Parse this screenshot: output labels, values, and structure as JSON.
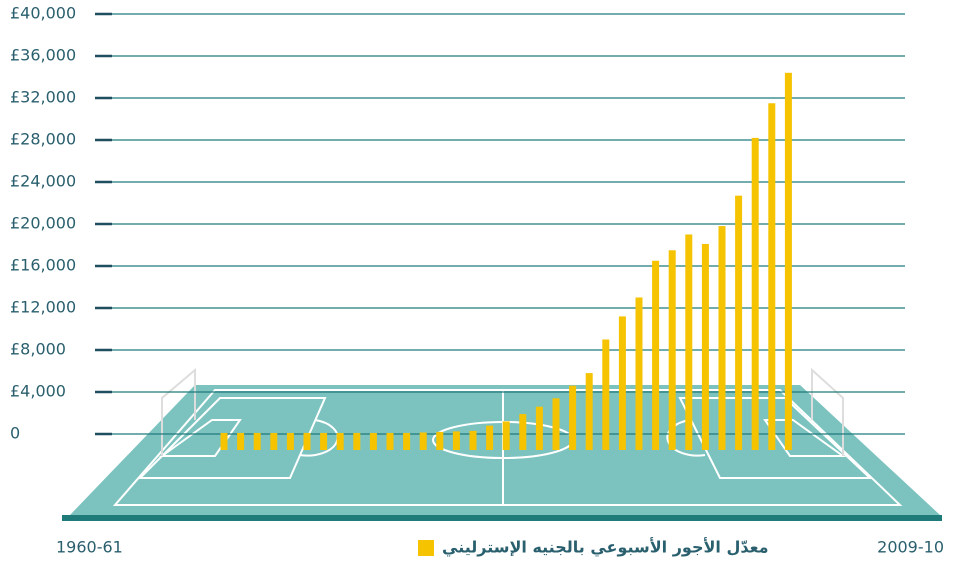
{
  "chart_data": {
    "type": "bar",
    "categories": [
      "1960-61",
      null,
      null,
      null,
      null,
      null,
      null,
      null,
      null,
      null,
      null,
      null,
      null,
      null,
      null,
      null,
      null,
      null,
      null,
      null,
      null,
      null,
      null,
      null,
      null,
      null,
      null,
      null,
      null,
      null,
      null,
      null,
      null,
      null,
      "2009-10"
    ],
    "series": [
      {
        "name": "معدّل الأجور الأسبوعي بالجنيه الإسترليني",
        "color": "#f6c300",
        "values": [
          100,
          100,
          100,
          100,
          100,
          100,
          100,
          100,
          100,
          100,
          100,
          100,
          150,
          200,
          250,
          300,
          800,
          1200,
          1900,
          2600,
          3400,
          4600,
          5800,
          9000,
          11200,
          13000,
          16500,
          17500,
          19000,
          18100,
          19800,
          22700,
          28200,
          31500,
          34400
        ]
      }
    ],
    "ylim": [
      0,
      40000
    ],
    "yticks": [
      0,
      {
        "value": 4000,
        "label": "£4,000"
      },
      {
        "value": 8000,
        "label": "£8,000"
      },
      {
        "value": 12000,
        "label": "£12,000"
      },
      {
        "value": 16000,
        "label": "£16,000"
      },
      {
        "value": 20000,
        "label": "£20,000"
      },
      {
        "value": 24000,
        "label": "£24,000"
      },
      {
        "value": 28000,
        "label": "£28,000"
      },
      {
        "value": 32000,
        "label": "£32,000"
      },
      {
        "value": 36000,
        "label": "£36,000"
      },
      {
        "value": 40000,
        "label": "£40,000"
      }
    ],
    "grid": true
  }
}
